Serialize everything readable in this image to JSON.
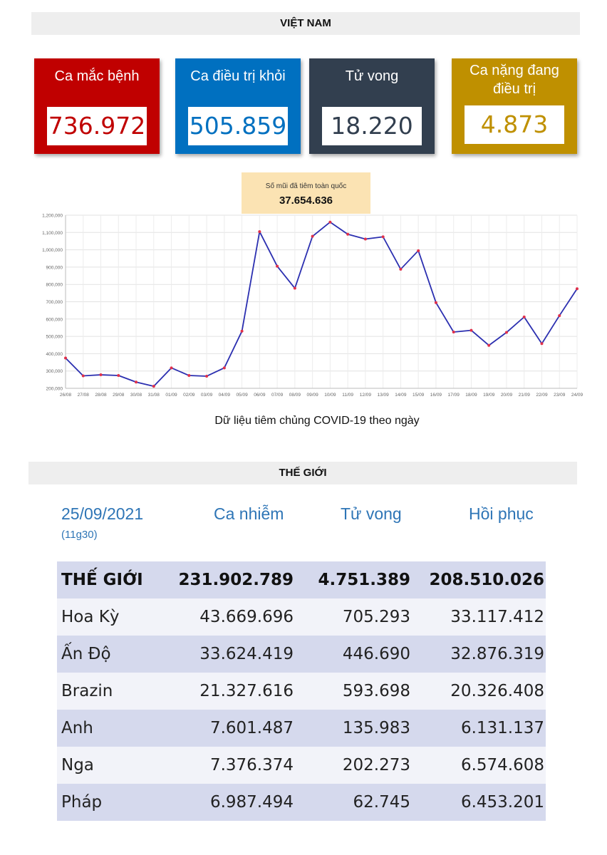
{
  "vietnam": {
    "banner": "VIỆT NAM",
    "cards": [
      {
        "label": "Ca mắc bệnh",
        "value": "736.972",
        "color": "#c00000"
      },
      {
        "label": "Ca điều trị khỏi",
        "value": "505.859",
        "color": "#0070c0"
      },
      {
        "label": "Tử vong",
        "value": "18.220",
        "color": "#323f4f"
      },
      {
        "label": "Ca nặng đang điều trị",
        "value": "4.873",
        "color": "#bf9000"
      }
    ]
  },
  "vaccine": {
    "tooltip_label": "Số mũi đã tiêm toàn quốc",
    "tooltip_value": "37.654.636",
    "caption": "Dữ liệu tiêm chủng COVID-19 theo ngày"
  },
  "chart_data": {
    "type": "line",
    "x": [
      "26/08",
      "27/08",
      "28/08",
      "29/08",
      "30/08",
      "31/08",
      "01/09",
      "02/09",
      "03/09",
      "04/09",
      "05/09",
      "06/09",
      "07/09",
      "08/09",
      "09/09",
      "10/09",
      "11/09",
      "12/09",
      "13/09",
      "14/09",
      "15/09",
      "16/09",
      "17/09",
      "18/09",
      "19/09",
      "20/09",
      "21/09",
      "22/09",
      "23/09",
      "24/09"
    ],
    "series": [
      {
        "values": [
          375000,
          272000,
          278000,
          274000,
          236000,
          212000,
          318000,
          274000,
          270000,
          318000,
          530000,
          1105000,
          905000,
          778000,
          1078000,
          1160000,
          1090000,
          1062000,
          1075000,
          888000,
          995000,
          695000,
          525000,
          535000,
          448000,
          523000,
          612000,
          458000,
          620000,
          775000
        ]
      }
    ],
    "yticks": [
      "200,000",
      "300,000",
      "400,000",
      "500,000",
      "600,000",
      "700,000",
      "800,000",
      "900,000",
      "1,000,000",
      "1,100,000",
      "1,200,000"
    ],
    "ylim": [
      200000,
      1200000
    ],
    "grid": true,
    "line_color": "#2b2fb0",
    "marker_color": "#e0304a"
  },
  "world": {
    "banner": "THẾ GIỚI",
    "date": "25/09/2021",
    "time": "(11g30)",
    "col_infected": "Ca nhiễm",
    "col_deaths": "Tử vong",
    "col_recovered": "Hồi phục",
    "rows": [
      [
        "THẾ GIỚI",
        "231.902.789",
        "4.751.389",
        "208.510.026"
      ],
      [
        "Hoa Kỳ",
        "43.669.696",
        "705.293",
        "33.117.412"
      ],
      [
        "Ấn Độ",
        "33.624.419",
        "446.690",
        "32.876.319"
      ],
      [
        "Brazin",
        "21.327.616",
        "593.698",
        "20.326.408"
      ],
      [
        "Anh",
        "7.601.487",
        "135.983",
        "6.131.137"
      ],
      [
        "Nga",
        "7.376.374",
        "202.273",
        "6.574.608"
      ],
      [
        "Pháp",
        "6.987.494",
        "62.745",
        "6.453.201"
      ]
    ]
  }
}
